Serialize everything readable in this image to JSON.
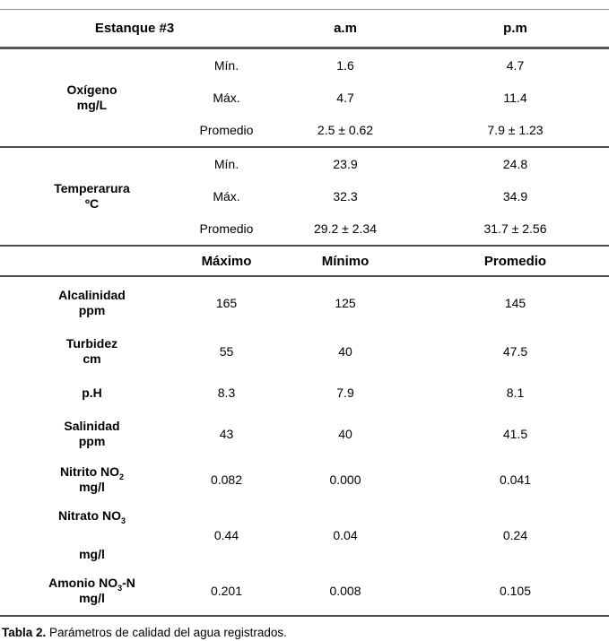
{
  "table": {
    "header_top": {
      "group_label": "Estanque #3",
      "col_am": "a.m",
      "col_pm": "p.m"
    },
    "section_oxigeno": {
      "param_line1": "Oxígeno",
      "param_line2": "mg/L",
      "rows": [
        {
          "stat": "Mín.",
          "am": "1.6",
          "pm": "4.7"
        },
        {
          "stat": "Máx.",
          "am": "4.7",
          "pm": "11.4"
        },
        {
          "stat": "Promedio",
          "am": "2.5 ± 0.62",
          "pm": "7.9 ± 1.23"
        }
      ]
    },
    "section_temperatura": {
      "param_line1": "Temperarura",
      "param_line2": "ºC",
      "rows": [
        {
          "stat": "Mín.",
          "am": "23.9",
          "pm": "24.8"
        },
        {
          "stat": "Máx.",
          "am": "32.3",
          "pm": "34.9"
        },
        {
          "stat": "Promedio",
          "am": "29.2 ± 2.34",
          "pm": "31.7 ± 2.56"
        }
      ]
    },
    "header_stats": {
      "max": "Máximo",
      "min": "Mínimo",
      "avg": "Promedio"
    },
    "params": [
      {
        "name_pre": "Alcalinidad",
        "name_sub": "",
        "name_post": "",
        "name_line2": "ppm",
        "max": "165",
        "min": "125",
        "avg": "145"
      },
      {
        "name_pre": "Turbidez",
        "name_sub": "",
        "name_post": "",
        "name_line2": "cm",
        "max": "55",
        "min": "40",
        "avg": "47.5"
      },
      {
        "name_pre": "p.H",
        "name_sub": "",
        "name_post": "",
        "name_line2": "",
        "max": "8.3",
        "min": "7.9",
        "avg": "8.1"
      },
      {
        "name_pre": "Salinidad",
        "name_sub": "",
        "name_post": "",
        "name_line2": "ppm",
        "max": "43",
        "min": "40",
        "avg": "41.5"
      },
      {
        "name_pre": "Nitrito NO",
        "name_sub": "2",
        "name_post": "",
        "name_line2": "mg/l",
        "max": "0.082",
        "min": "0.000",
        "avg": "0.041"
      },
      {
        "name_pre": "Nitrato NO",
        "name_sub": "3",
        "name_post": "",
        "name_line2": "mg/l",
        "max": "0.44",
        "min": "0.04",
        "avg": "0.24"
      },
      {
        "name_pre": "Amonio NO",
        "name_sub": "3",
        "name_post": "-N",
        "name_line2": "mg/l",
        "max": "0.201",
        "min": "0.008",
        "avg": "0.105"
      }
    ],
    "caption": {
      "label": "Tabla 2.",
      "text": " Parámetros de calidad del agua registrados."
    }
  }
}
